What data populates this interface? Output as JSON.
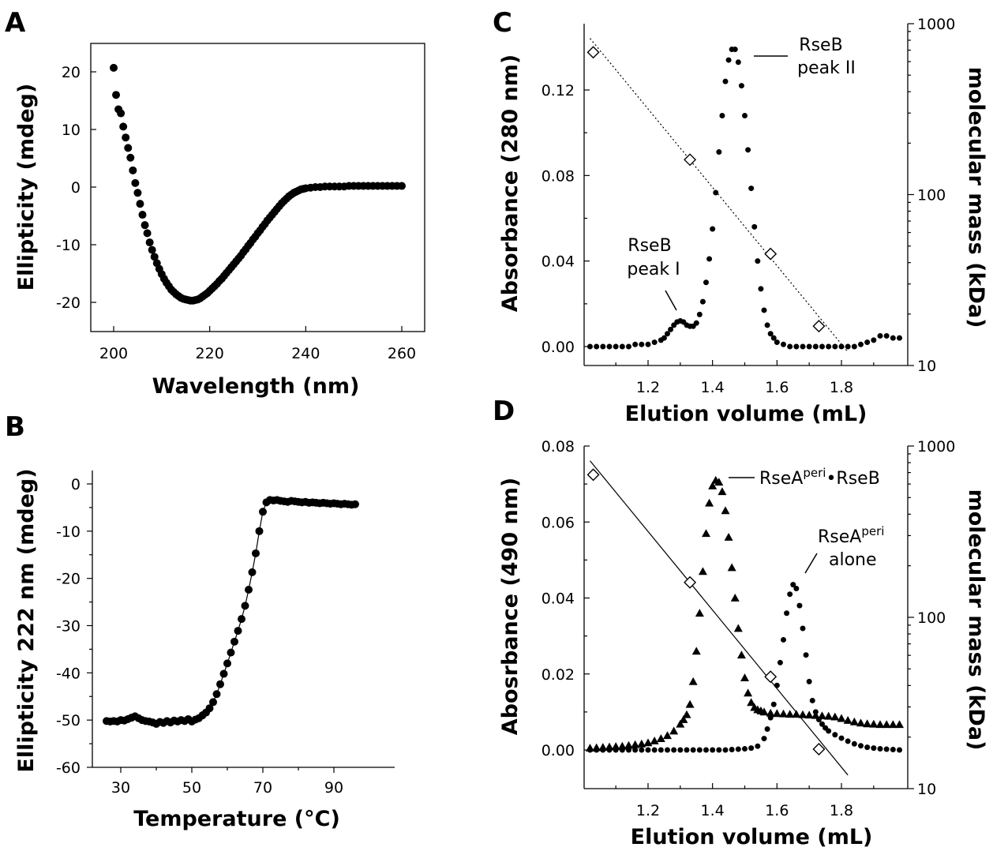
{
  "panels": [
    {
      "label": "A",
      "xlabel": "Wavelength (nm)",
      "ylabel": "Ellipticity (mdeg)",
      "xticks": [
        "200",
        "220",
        "240",
        "260"
      ],
      "yticks": [
        "20",
        "10",
        "0",
        "-10",
        "-20"
      ]
    },
    {
      "label": "B",
      "xlabel": "Temperature (°C)",
      "ylabel": "Ellipticity 222 nm (mdeg)",
      "xticks": [
        "30",
        "50",
        "70",
        "90"
      ],
      "yticks": [
        "0",
        "-10",
        "-20",
        "-30",
        "-40",
        "-50",
        "-60"
      ]
    },
    {
      "label": "C",
      "xlabel": "Elution volume (mL)",
      "ylabel": "Absorbance (280 nm)",
      "y2label": "molecular mass (kDa)",
      "xticks": [
        "1.2",
        "1.4",
        "1.6",
        "1.8"
      ],
      "yticks": [
        "0.12",
        "0.08",
        "0.04",
        "0.00"
      ],
      "y2ticks": [
        "1000",
        "100",
        "10"
      ],
      "annotations": [
        "RseB",
        "peak II",
        "RseB",
        "peak I"
      ]
    },
    {
      "label": "D",
      "xlabel": "Elution volume (mL)",
      "ylabel": "Abosrbance (490 nm)",
      "y2label": "molecular mass (kDa)",
      "xticks": [
        "1.2",
        "1.4",
        "1.6",
        "1.8"
      ],
      "yticks": [
        "0.08",
        "0.06",
        "0.04",
        "0.02",
        "0.00"
      ],
      "y2ticks": [
        "1000",
        "100",
        "10"
      ],
      "annotations": [
        "RseA",
        "peri",
        "•RseB",
        "RseA",
        "peri",
        "alone"
      ]
    }
  ],
  "chart_data": [
    {
      "type": "scatter",
      "title": "A",
      "xlabel": "Wavelength (nm)",
      "ylabel": "Ellipticity (mdeg)",
      "xlim": [
        195,
        265
      ],
      "ylim": [
        -28,
        25
      ],
      "grid": false,
      "x": [
        200,
        200.5,
        201,
        201.5,
        202,
        202.5,
        203,
        203.5,
        204,
        204.5,
        205,
        205.5,
        206,
        206.5,
        207,
        207.5,
        208,
        208.5,
        209,
        209.5,
        210,
        210.5,
        211,
        211.5,
        212,
        212.5,
        213,
        213.5,
        214,
        214.5,
        215,
        215.5,
        216,
        216.5,
        217,
        217.5,
        218,
        218.5,
        219,
        219.5,
        220,
        220.5,
        221,
        221.5,
        222,
        222.5,
        223,
        223.5,
        224,
        224.5,
        225,
        225.5,
        226,
        226.5,
        227,
        227.5,
        228,
        228.5,
        229,
        229.5,
        230,
        230.5,
        231,
        231.5,
        232,
        232.5,
        233,
        233.5,
        234,
        234.5,
        235,
        235.5,
        236,
        236.5,
        237,
        237.5,
        238,
        238.5,
        239,
        239.5,
        240,
        241,
        242,
        243,
        244,
        245,
        246,
        247,
        248,
        249,
        250,
        251,
        252,
        253,
        254,
        255,
        256,
        257,
        258,
        259,
        260
      ],
      "values": [
        20.7,
        16.0,
        13.5,
        12.8,
        10.5,
        8.6,
        6.8,
        5.1,
        2.9,
        0.7,
        -1.0,
        -2.9,
        -4.8,
        -6.6,
        -8.0,
        -9.6,
        -10.9,
        -12.1,
        -13.2,
        -14.2,
        -15.1,
        -15.9,
        -16.6,
        -17.2,
        -17.8,
        -18.2,
        -18.6,
        -18.9,
        -19.2,
        -19.4,
        -19.5,
        -19.6,
        -19.7,
        -19.7,
        -19.6,
        -19.5,
        -19.3,
        -19.0,
        -18.7,
        -18.4,
        -18.0,
        -17.6,
        -17.2,
        -16.8,
        -16.3,
        -15.9,
        -15.4,
        -14.9,
        -14.4,
        -13.9,
        -13.4,
        -12.9,
        -12.4,
        -11.9,
        -11.3,
        -10.8,
        -10.2,
        -9.7,
        -9.1,
        -8.6,
        -8.0,
        -7.5,
        -6.9,
        -6.4,
        -5.8,
        -5.3,
        -4.8,
        -4.3,
        -3.8,
        -3.3,
        -2.8,
        -2.4,
        -2.0,
        -1.6,
        -1.3,
        -1.0,
        -0.8,
        -0.6,
        -0.4,
        -0.3,
        -0.2,
        -0.1,
        0.0,
        0.0,
        0.1,
        0.1,
        0.1,
        0.1,
        0.1,
        0.2,
        0.2,
        0.2,
        0.2,
        0.2,
        0.2,
        0.2,
        0.2,
        0.2,
        0.2,
        0.2,
        0.2
      ]
    },
    {
      "type": "scatter",
      "title": "B",
      "xlabel": "Temperature (°C)",
      "ylabel": "Ellipticity 222 nm (mdeg)",
      "xlim": [
        20,
        100
      ],
      "ylim": [
        -60,
        5
      ],
      "grid": false,
      "x": [
        26,
        27,
        28,
        29,
        30,
        31,
        32,
        33,
        34,
        35,
        36,
        37,
        38,
        39,
        40,
        41,
        42,
        43,
        44,
        45,
        46,
        47,
        48,
        49,
        50,
        51,
        52,
        53,
        54,
        55,
        56,
        57,
        58,
        59,
        60,
        61,
        62,
        63,
        64,
        65,
        66,
        67,
        68,
        69,
        70,
        71,
        72,
        73,
        74,
        75,
        76,
        77,
        78,
        79,
        80,
        81,
        82,
        83,
        84,
        85,
        86,
        87,
        88,
        89,
        90,
        91,
        92,
        93,
        94,
        95,
        96
      ],
      "values": [
        -50.2,
        -50.3,
        -50.2,
        -50.3,
        -50.0,
        -50.1,
        -49.8,
        -49.5,
        -49.2,
        -49.6,
        -50.0,
        -50.2,
        -50.3,
        -50.5,
        -50.8,
        -50.4,
        -50.6,
        -50.2,
        -50.5,
        -50.1,
        -50.3,
        -50.0,
        -50.2,
        -49.8,
        -50.3,
        -49.9,
        -49.6,
        -49.0,
        -48.4,
        -47.5,
        -46.2,
        -44.5,
        -42.4,
        -40.2,
        -38.0,
        -35.7,
        -33.4,
        -31.1,
        -28.6,
        -25.8,
        -22.4,
        -18.7,
        -14.7,
        -10.0,
        -5.9,
        -3.9,
        -3.4,
        -3.5,
        -3.4,
        -3.6,
        -3.7,
        -3.8,
        -3.6,
        -3.7,
        -3.8,
        -3.9,
        -3.8,
        -4.0,
        -3.9,
        -4.0,
        -4.1,
        -4.0,
        -4.1,
        -4.2,
        -4.1,
        -4.2,
        -4.3,
        -4.2,
        -4.3,
        -4.4,
        -4.3
      ]
    },
    {
      "type": "scatter",
      "title": "C",
      "xlabel": "Elution volume (mL)",
      "ylabel": "Absorbance (280 nm)",
      "y2label": "molecular mass (kDa)",
      "xlim": [
        1.02,
        1.98
      ],
      "ylim": [
        -0.01,
        0.14
      ],
      "y2lim": [
        10,
        1000
      ],
      "y2scale": "log",
      "grid": false,
      "series": [
        {
          "x": [
            1.02,
            1.04,
            1.06,
            1.08,
            1.1,
            1.12,
            1.14,
            1.16,
            1.18,
            1.2,
            1.22,
            1.24,
            1.25,
            1.26,
            1.27,
            1.28,
            1.29,
            1.3,
            1.31,
            1.32,
            1.33,
            1.34,
            1.35,
            1.36,
            1.37,
            1.38,
            1.39,
            1.4,
            1.41,
            1.42,
            1.43,
            1.44,
            1.45,
            1.46,
            1.47,
            1.48,
            1.49,
            1.5,
            1.51,
            1.52,
            1.53,
            1.54,
            1.55,
            1.56,
            1.57,
            1.58,
            1.59,
            1.6,
            1.62,
            1.64,
            1.66,
            1.68,
            1.7,
            1.72,
            1.74,
            1.76,
            1.78,
            1.8,
            1.82,
            1.84,
            1.86,
            1.88,
            1.9,
            1.92,
            1.94,
            1.96,
            1.98
          ],
          "values": [
            0.0,
            0.0,
            0.0,
            0.0,
            0.0,
            0.0,
            0.0,
            0.001,
            0.001,
            0.001,
            0.002,
            0.003,
            0.004,
            0.006,
            0.008,
            0.01,
            0.0115,
            0.012,
            0.0115,
            0.01,
            0.0095,
            0.0095,
            0.011,
            0.015,
            0.021,
            0.03,
            0.041,
            0.055,
            0.072,
            0.091,
            0.108,
            0.124,
            0.134,
            0.139,
            0.139,
            0.133,
            0.122,
            0.108,
            0.092,
            0.074,
            0.056,
            0.04,
            0.027,
            0.017,
            0.01,
            0.006,
            0.004,
            0.002,
            0.001,
            0.0,
            0.0,
            0.0,
            0.0,
            0.0,
            0.0,
            0.0,
            0.0,
            0.0,
            0.0,
            0.0,
            0.001,
            0.002,
            0.003,
            0.005,
            0.005,
            0.004,
            0.004
          ]
        },
        {
          "axis": "right",
          "x": [
            1.03,
            1.33,
            1.58,
            1.73
          ],
          "values": [
            680,
            160,
            45,
            17
          ]
        }
      ]
    },
    {
      "type": "scatter",
      "title": "D",
      "xlabel": "Elution volume (mL)",
      "ylabel": "Abosrbance (490 nm)",
      "y2label": "molecular mass (kDa)",
      "xlim": [
        1.02,
        1.98
      ],
      "ylim": [
        -0.01,
        0.08
      ],
      "y2lim": [
        10,
        1000
      ],
      "y2scale": "log",
      "grid": false,
      "series": [
        {
          "name": "RseA peri • RseB",
          "x": [
            1.02,
            1.04,
            1.06,
            1.08,
            1.1,
            1.12,
            1.14,
            1.16,
            1.18,
            1.2,
            1.22,
            1.24,
            1.26,
            1.28,
            1.3,
            1.31,
            1.32,
            1.33,
            1.34,
            1.35,
            1.36,
            1.37,
            1.38,
            1.39,
            1.4,
            1.41,
            1.42,
            1.43,
            1.44,
            1.45,
            1.46,
            1.47,
            1.48,
            1.49,
            1.5,
            1.51,
            1.52,
            1.53,
            1.54,
            1.55,
            1.56,
            1.58,
            1.6,
            1.62,
            1.64,
            1.66,
            1.68,
            1.7,
            1.72,
            1.74,
            1.76,
            1.78,
            1.8,
            1.82,
            1.84,
            1.86,
            1.88,
            1.9,
            1.92,
            1.94,
            1.96,
            1.98
          ],
          "values": [
            0.0005,
            0.0006,
            0.0007,
            0.0008,
            0.0009,
            0.001,
            0.0012,
            0.0014,
            0.0016,
            0.0019,
            0.0024,
            0.003,
            0.0038,
            0.005,
            0.0068,
            0.008,
            0.0093,
            0.012,
            0.018,
            0.026,
            0.036,
            0.047,
            0.057,
            0.065,
            0.0695,
            0.071,
            0.0705,
            0.068,
            0.063,
            0.056,
            0.048,
            0.04,
            0.032,
            0.025,
            0.019,
            0.015,
            0.0125,
            0.0112,
            0.0106,
            0.0103,
            0.01,
            0.0097,
            0.0096,
            0.0095,
            0.0094,
            0.0094,
            0.0093,
            0.0092,
            0.0091,
            0.009,
            0.0089,
            0.0087,
            0.0083,
            0.0078,
            0.0074,
            0.0071,
            0.0069,
            0.0068,
            0.0067,
            0.0067,
            0.0067,
            0.0067
          ]
        },
        {
          "name": "RseA peri alone",
          "x": [
            1.02,
            1.04,
            1.06,
            1.08,
            1.1,
            1.12,
            1.14,
            1.16,
            1.18,
            1.2,
            1.22,
            1.24,
            1.26,
            1.28,
            1.3,
            1.32,
            1.34,
            1.36,
            1.38,
            1.4,
            1.42,
            1.44,
            1.46,
            1.48,
            1.5,
            1.52,
            1.54,
            1.56,
            1.57,
            1.58,
            1.59,
            1.6,
            1.61,
            1.62,
            1.63,
            1.64,
            1.65,
            1.66,
            1.67,
            1.68,
            1.69,
            1.7,
            1.71,
            1.72,
            1.73,
            1.74,
            1.75,
            1.76,
            1.78,
            1.8,
            1.82,
            1.84,
            1.86,
            1.88,
            1.9,
            1.92,
            1.94,
            1.96,
            1.98
          ],
          "values": [
            0.0,
            0.0,
            0.0,
            0.0,
            0.0,
            0.0,
            0.0,
            0.0,
            0.0,
            0.0,
            0.0,
            0.0,
            0.0,
            0.0,
            0.0,
            0.0,
            0.0,
            0.0,
            0.0,
            0.0,
            0.0,
            0.0,
            0.0001,
            0.0002,
            0.0003,
            0.0005,
            0.001,
            0.003,
            0.0055,
            0.0085,
            0.012,
            0.017,
            0.023,
            0.029,
            0.036,
            0.041,
            0.0435,
            0.0425,
            0.038,
            0.032,
            0.025,
            0.018,
            0.013,
            0.01,
            0.008,
            0.0068,
            0.0058,
            0.005,
            0.004,
            0.0031,
            0.0023,
            0.0016,
            0.0011,
            0.0007,
            0.0005,
            0.0003,
            0.0002,
            0.0001,
            0.0
          ]
        },
        {
          "axis": "right",
          "x": [
            1.03,
            1.33,
            1.58,
            1.73
          ],
          "values": [
            680,
            160,
            45,
            17
          ]
        }
      ]
    }
  ]
}
